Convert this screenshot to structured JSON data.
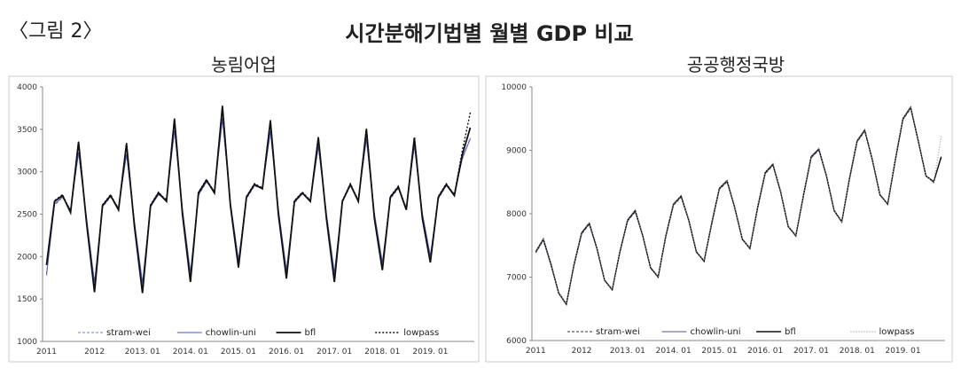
{
  "header": {
    "label": "〈그림 2〉",
    "title": "시간분해기법별 월별 GDP 비교"
  },
  "chart_data": [
    {
      "type": "line",
      "title": "농림어업",
      "categories": [
        "2011",
        null,
        null,
        null,
        null,
        null,
        "2012",
        null,
        null,
        null,
        null,
        null,
        "2013. 01",
        null,
        null,
        null,
        null,
        null,
        "2014. 01",
        null,
        null,
        null,
        null,
        null,
        "2015. 01",
        null,
        null,
        null,
        null,
        null,
        "2016. 01",
        null,
        null,
        null,
        null,
        null,
        "2017. 01",
        null,
        null,
        null,
        null,
        null,
        "2018. 01",
        null,
        null,
        null,
        null,
        null,
        "2019. 01",
        null,
        null,
        null,
        null,
        null
      ],
      "ylim": [
        1000,
        4000
      ],
      "yticks": [
        1000,
        1500,
        2000,
        2500,
        3000,
        3500,
        4000
      ],
      "series": [
        {
          "name": "stram-wei",
          "color": "#6b7fd6",
          "dash": "3,2",
          "width": 1,
          "values": [
            1800,
            2600,
            2700,
            2560,
            3220,
            2450,
            1700,
            2580,
            2700,
            2580,
            3200,
            2400,
            1680,
            2580,
            2740,
            2680,
            3480,
            2550,
            1800,
            2720,
            2880,
            2780,
            3620,
            2630,
            1950,
            2680,
            2830,
            2800,
            3470,
            2550,
            1830,
            2630,
            2740,
            2670,
            3290,
            2500,
            1800,
            2640,
            2830,
            2680,
            3380,
            2500,
            1920,
            2680,
            2800,
            2580,
            3300,
            2500,
            2000,
            2680,
            2830,
            2740,
            3150,
            3400
          ]
        },
        {
          "name": "chowlin-uni",
          "color": "#4a55b8",
          "dash": "",
          "width": 1,
          "values": [
            1780,
            2620,
            2700,
            2550,
            3230,
            2460,
            1690,
            2590,
            2710,
            2570,
            3210,
            2410,
            1690,
            2590,
            2730,
            2670,
            3490,
            2560,
            1810,
            2730,
            2880,
            2770,
            3630,
            2640,
            1960,
            2690,
            2840,
            2800,
            3480,
            2560,
            1840,
            2640,
            2740,
            2660,
            3300,
            2510,
            1810,
            2650,
            2840,
            2670,
            3390,
            2510,
            1930,
            2690,
            2810,
            2570,
            3310,
            2510,
            2010,
            2690,
            2840,
            2730,
            3160,
            3390
          ]
        },
        {
          "name": "bfl",
          "color": "#111111",
          "dash": "",
          "width": 1.8,
          "values": [
            1900,
            2650,
            2720,
            2520,
            3350,
            2400,
            1580,
            2600,
            2720,
            2550,
            3330,
            2350,
            1570,
            2600,
            2750,
            2650,
            3620,
            2500,
            1700,
            2750,
            2900,
            2750,
            3770,
            2600,
            1870,
            2700,
            2850,
            2800,
            3600,
            2500,
            1740,
            2650,
            2750,
            2650,
            3400,
            2450,
            1700,
            2650,
            2850,
            2650,
            3500,
            2450,
            1840,
            2700,
            2820,
            2550,
            3400,
            2450,
            1930,
            2700,
            2850,
            2720,
            3200,
            3520
          ]
        },
        {
          "name": "lowpass",
          "color": "#111111",
          "dash": "2,2",
          "width": 1.4,
          "values": [
            1920,
            2660,
            2730,
            2530,
            3360,
            2410,
            1590,
            2610,
            2730,
            2560,
            3340,
            2360,
            1580,
            2610,
            2760,
            2660,
            3630,
            2510,
            1710,
            2760,
            2910,
            2760,
            3780,
            2610,
            1880,
            2710,
            2860,
            2810,
            3610,
            2510,
            1750,
            2660,
            2760,
            2660,
            3410,
            2460,
            1710,
            2660,
            2860,
            2660,
            3510,
            2460,
            1850,
            2710,
            2830,
            2560,
            3410,
            2460,
            1940,
            2710,
            2860,
            2730,
            3250,
            3700
          ]
        }
      ]
    },
    {
      "type": "line",
      "title": "공공행정국방",
      "categories": [
        "2011",
        null,
        null,
        null,
        null,
        null,
        "2012",
        null,
        null,
        null,
        null,
        null,
        "2013. 01",
        null,
        null,
        null,
        null,
        null,
        "2014. 01",
        null,
        null,
        null,
        null,
        null,
        "2015. 01",
        null,
        null,
        null,
        null,
        null,
        "2016. 01",
        null,
        null,
        null,
        null,
        null,
        "2017. 01",
        null,
        null,
        null,
        null,
        null,
        "2018. 01",
        null,
        null,
        null,
        null,
        null,
        "2019. 01",
        null,
        null,
        null,
        null,
        null
      ],
      "ylim": [
        6000,
        10000
      ],
      "yticks": [
        6000,
        7000,
        8000,
        9000,
        10000
      ],
      "series": [
        {
          "name": "stram-wei",
          "color": "#333333",
          "dash": "3,2",
          "width": 1,
          "values": [
            7380,
            7580,
            7180,
            6740,
            6580,
            7180,
            7680,
            7830,
            7440,
            6940,
            6810,
            7380,
            7880,
            8030,
            7640,
            7140,
            7010,
            7630,
            8130,
            8260,
            7890,
            7390,
            7260,
            7830,
            8380,
            8500,
            8090,
            7590,
            7460,
            8080,
            8630,
            8760,
            8340,
            7790,
            7660,
            8280,
            8880,
            9000,
            8590,
            8040,
            7880,
            8530,
            9130,
            9300,
            8840,
            8290,
            8160,
            8830,
            9480,
            9660,
            9140,
            8590,
            8510,
            8880
          ]
        },
        {
          "name": "chowlin-uni",
          "color": "#7a6fc0",
          "dash": "",
          "width": 1.2,
          "values": [
            7390,
            7590,
            7190,
            6750,
            6580,
            7190,
            7690,
            7840,
            7450,
            6950,
            6810,
            7390,
            7890,
            8040,
            7650,
            7150,
            7010,
            7640,
            8140,
            8270,
            7900,
            7400,
            7260,
            7840,
            8390,
            8510,
            8100,
            7600,
            7460,
            8090,
            8640,
            8770,
            8350,
            7800,
            7660,
            8290,
            8890,
            9010,
            8600,
            8050,
            7880,
            8540,
            9140,
            9310,
            8850,
            8300,
            8160,
            8840,
            9490,
            9670,
            9150,
            8600,
            8510,
            8890
          ]
        },
        {
          "name": "bfl",
          "color": "#111111",
          "dash": "",
          "width": 1.4,
          "values": [
            7400,
            7600,
            7200,
            6750,
            6570,
            7200,
            7700,
            7850,
            7450,
            6950,
            6800,
            7400,
            7900,
            8050,
            7650,
            7150,
            7000,
            7650,
            8150,
            8280,
            7900,
            7400,
            7250,
            7850,
            8400,
            8520,
            8100,
            7600,
            7450,
            8100,
            8650,
            8780,
            8350,
            7800,
            7650,
            8300,
            8900,
            9020,
            8600,
            8050,
            7870,
            8550,
            9150,
            9320,
            8850,
            8300,
            8150,
            8850,
            9500,
            9680,
            9150,
            8600,
            8500,
            8900
          ]
        },
        {
          "name": "lowpass",
          "color": "#999999",
          "dash": "1,2",
          "width": 1.2,
          "values": [
            7410,
            7610,
            7210,
            6760,
            6580,
            7210,
            7710,
            7860,
            7460,
            6960,
            6810,
            7410,
            7910,
            8060,
            7660,
            7160,
            7010,
            7660,
            8160,
            8290,
            7910,
            7410,
            7260,
            7860,
            8410,
            8530,
            8110,
            7610,
            7460,
            8110,
            8660,
            8790,
            8360,
            7810,
            7660,
            8310,
            8910,
            9030,
            8610,
            8060,
            7880,
            8560,
            9160,
            9330,
            8860,
            8310,
            8160,
            8860,
            9510,
            9690,
            9160,
            8610,
            8480,
            9220
          ]
        }
      ]
    }
  ]
}
